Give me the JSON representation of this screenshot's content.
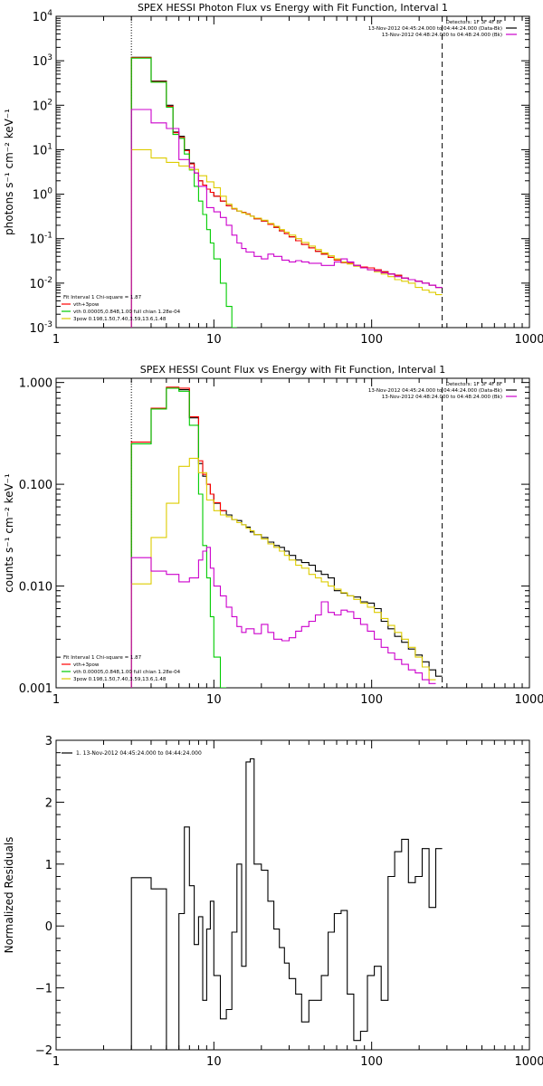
{
  "chart_data": [
    {
      "type": "line",
      "title": "SPEX HESSI Photon Flux vs Energy with Fit Function, Interval 1",
      "xlabel": "",
      "ylabel": "photons s⁻¹ cm⁻² keV⁻¹",
      "xscale": "log",
      "yscale": "log",
      "xlim": [
        1,
        1000
      ],
      "ylim": [
        0.001,
        10000
      ],
      "x_ticks": [
        1,
        10,
        100,
        1000
      ],
      "x_tick_labels": [
        "1",
        "10",
        "100",
        "1000"
      ],
      "y_ticks": [
        0.001,
        0.01,
        0.1,
        1,
        10,
        100,
        1000,
        10000
      ],
      "y_tick_labels": [
        [
          "10",
          "-3"
        ],
        [
          "10",
          "-2"
        ],
        [
          "10",
          "-1"
        ],
        [
          "10",
          "0"
        ],
        [
          "10",
          "1"
        ],
        [
          "10",
          "2"
        ],
        [
          "10",
          "3"
        ],
        [
          "10",
          "4"
        ]
      ],
      "fit_range": [
        3,
        280
      ],
      "info_right": [
        "Detectors: 1F 3F 4F 8F",
        "13-Nov-2012 04:45:24.000 to 04:44:24.000 (Data-Bk)",
        "13-Nov-2012 04:48:24.000 to 04:48:24.000 (Bk)"
      ],
      "info_left": [
        "Fit Interval 1   Chi-square = 1.87",
        "vth+3pow",
        "vth 0.00005,0.848,1.00  full chian 1.28e-04",
        "3pow 0.198,1.50,7.40,3.59,13.6,1.48"
      ],
      "legend_right_colors": [
        "#000000",
        "#cc00cc"
      ],
      "legend_left_colors": [
        "#ff0000",
        "#00cc00",
        "#ddcc00"
      ],
      "grid": false,
      "series": [
        {
          "color": "#000000",
          "edges": [
            3,
            4,
            5,
            5.5,
            6,
            6.5,
            7,
            7.5,
            8,
            8.5,
            9,
            9.5,
            10,
            11,
            12,
            13,
            14,
            15,
            16,
            17,
            18,
            20,
            22,
            24,
            26,
            28,
            30,
            33,
            36,
            40,
            44,
            48,
            53,
            58,
            64,
            70,
            77,
            85,
            94,
            104,
            115,
            127,
            140,
            155,
            171,
            189,
            209,
            231,
            255,
            280
          ],
          "values": [
            1200,
            350,
            100,
            25,
            20,
            10,
            5,
            3,
            2,
            1.6,
            1.3,
            1.1,
            0.9,
            0.7,
            0.55,
            0.47,
            0.42,
            0.39,
            0.36,
            0.32,
            0.28,
            0.25,
            0.21,
            0.18,
            0.15,
            0.13,
            0.11,
            0.09,
            0.074,
            0.062,
            0.052,
            0.045,
            0.038,
            0.033,
            0.029,
            0.028,
            0.025,
            0.023,
            0.022,
            0.02,
            0.018,
            0.016,
            0.015,
            0.013,
            0.012,
            0.011,
            0.01,
            0.009,
            0.008
          ]
        },
        {
          "color": "#ff0000",
          "edges": [
            3,
            4,
            5,
            5.5,
            6,
            6.5,
            7,
            7.5,
            8,
            8.5,
            9,
            9.5,
            10,
            11,
            12,
            13,
            14,
            15,
            16,
            17,
            18,
            20,
            22,
            24,
            26,
            28,
            30,
            33,
            36,
            40,
            44,
            48,
            53,
            58,
            64,
            70,
            77,
            85,
            94,
            104,
            115,
            127,
            140,
            155,
            171,
            189,
            209,
            231,
            255,
            280
          ],
          "values": [
            1180,
            340,
            95,
            24,
            19,
            9.5,
            4.8,
            3,
            2,
            1.6,
            1.3,
            1.1,
            0.9,
            0.7,
            0.55,
            0.47,
            0.42,
            0.39,
            0.36,
            0.32,
            0.28,
            0.25,
            0.21,
            0.18,
            0.15,
            0.13,
            0.11,
            0.09,
            0.074,
            0.062,
            0.052,
            0.045,
            0.038,
            0.033,
            0.029,
            0.028,
            0.025,
            0.023,
            0.022,
            0.02,
            0.018,
            0.016,
            0.015,
            0.013,
            0.012,
            0.011,
            0.01,
            0.009,
            0.008
          ]
        },
        {
          "color": "#00cc00",
          "edges": [
            3,
            4,
            5,
            5.5,
            6,
            6.5,
            7,
            7.5,
            8,
            8.5,
            9,
            9.5,
            10,
            11,
            12,
            13,
            14
          ],
          "values": [
            1150,
            330,
            90,
            22,
            18,
            8,
            3.5,
            1.5,
            0.7,
            0.35,
            0.16,
            0.08,
            0.035,
            0.01,
            0.003,
            0.001
          ]
        },
        {
          "color": "#ddcc00",
          "edges": [
            3,
            4,
            5,
            6,
            7,
            8,
            9,
            10,
            11,
            12,
            13,
            14,
            15,
            16,
            17,
            18,
            20,
            22,
            24,
            26,
            28,
            30,
            33,
            36,
            40,
            44,
            48,
            53,
            58,
            64,
            70,
            77,
            85,
            94,
            104,
            115,
            127,
            140,
            155,
            171,
            189,
            209,
            231,
            255,
            280
          ],
          "values": [
            10,
            6.5,
            5.2,
            4.3,
            3.6,
            2.6,
            1.9,
            1.4,
            0.9,
            0.6,
            0.48,
            0.42,
            0.38,
            0.35,
            0.32,
            0.29,
            0.26,
            0.22,
            0.19,
            0.16,
            0.14,
            0.12,
            0.1,
            0.082,
            0.068,
            0.057,
            0.048,
            0.041,
            0.035,
            0.03,
            0.027,
            0.024,
            0.022,
            0.02,
            0.018,
            0.016,
            0.014,
            0.012,
            0.011,
            0.01,
            0.008,
            0.007,
            0.0062,
            0.0055
          ]
        },
        {
          "color": "#cc00cc",
          "edges": [
            3,
            4,
            5,
            6,
            7,
            7.5,
            8,
            9,
            10,
            11,
            12,
            13,
            14,
            15,
            16,
            18,
            20,
            22,
            24,
            27,
            30,
            33,
            36,
            40,
            44,
            48,
            53,
            58,
            64,
            70,
            77,
            85,
            94,
            104,
            115,
            127,
            140,
            155,
            171,
            189,
            209,
            231,
            255,
            280
          ],
          "values": [
            80,
            40,
            30,
            6,
            4,
            3,
            1.5,
            0.5,
            0.4,
            0.3,
            0.2,
            0.12,
            0.08,
            0.06,
            0.05,
            0.04,
            0.035,
            0.045,
            0.04,
            0.033,
            0.03,
            0.032,
            0.03,
            0.028,
            0.028,
            0.025,
            0.025,
            0.03,
            0.035,
            0.03,
            0.025,
            0.022,
            0.02,
            0.019,
            0.017,
            0.016,
            0.014,
            0.013,
            0.012,
            0.011,
            0.01,
            0.009,
            0.008
          ]
        }
      ]
    },
    {
      "type": "line",
      "title": "SPEX HESSI Count Flux vs Energy with Fit Function, Interval 1",
      "xlabel": "",
      "ylabel": "counts s⁻¹ cm⁻² keV⁻¹",
      "xscale": "log",
      "yscale": "log",
      "xlim": [
        1,
        1000
      ],
      "ylim": [
        0.001,
        1.1
      ],
      "x_ticks": [
        1,
        10,
        100,
        1000
      ],
      "x_tick_labels": [
        "1",
        "10",
        "100",
        "1000"
      ],
      "y_ticks": [
        0.001,
        0.01,
        0.1,
        1
      ],
      "y_tick_labels": [
        [
          "0.001"
        ],
        [
          "0.010"
        ],
        [
          "0.100"
        ],
        [
          "1.000"
        ]
      ],
      "fit_range": [
        3,
        280
      ],
      "info_right": [
        "Detectors: 1F 3F 4F 8F",
        "13-Nov-2012 04:45:24.000 to 04:44:24.000 (Data-Bk)",
        "13-Nov-2012 04:48:24.000 to 04:48:24.000 (Bk)"
      ],
      "info_left": [
        "Fit Interval 1   Chi-square = 1.87",
        "vth+3pow",
        "vth 0.00005,0.848,1.00  full chian 1.28e-04",
        "3pow 0.198,1.50,7.40,3.59,13.6,1.48"
      ],
      "legend_right_colors": [
        "#000000",
        "#cc00cc"
      ],
      "legend_left_colors": [
        "#ff0000",
        "#00cc00",
        "#ddcc00"
      ],
      "grid": false,
      "series": [
        {
          "color": "#000000",
          "edges": [
            3,
            4,
            5,
            6,
            7,
            8,
            8.5,
            9,
            9.5,
            10,
            11,
            12,
            13,
            14,
            15,
            16,
            17,
            18,
            20,
            22,
            24,
            26,
            28,
            30,
            33,
            36,
            40,
            44,
            48,
            53,
            58,
            64,
            70,
            77,
            85,
            94,
            104,
            115,
            127,
            140,
            155,
            171,
            189,
            209,
            231,
            255,
            280
          ],
          "values": [
            0.25,
            0.55,
            0.88,
            0.85,
            0.45,
            0.16,
            0.12,
            0.1,
            0.08,
            0.065,
            0.055,
            0.05,
            0.045,
            0.044,
            0.04,
            0.038,
            0.034,
            0.032,
            0.03,
            0.027,
            0.025,
            0.024,
            0.022,
            0.02,
            0.018,
            0.017,
            0.016,
            0.014,
            0.013,
            0.012,
            0.009,
            0.0085,
            0.008,
            0.0078,
            0.007,
            0.0068,
            0.006,
            0.0045,
            0.0038,
            0.0032,
            0.0028,
            0.0024,
            0.0021,
            0.0018,
            0.0015,
            0.0013
          ]
        },
        {
          "color": "#ff0000",
          "edges": [
            3,
            4,
            5,
            6,
            7,
            8,
            8.5,
            9,
            9.5,
            10,
            11,
            12
          ],
          "values": [
            0.26,
            0.56,
            0.9,
            0.88,
            0.46,
            0.17,
            0.125,
            0.1,
            0.08,
            0.066,
            0.055
          ]
        },
        {
          "color": "#00cc00",
          "edges": [
            3,
            4,
            5,
            6,
            7,
            8,
            8.5,
            9,
            9.5,
            10,
            11,
            12
          ],
          "values": [
            0.25,
            0.55,
            0.88,
            0.82,
            0.38,
            0.08,
            0.025,
            0.012,
            0.005,
            0.002,
            0.001
          ]
        },
        {
          "color": "#ddcc00",
          "edges": [
            3,
            4,
            5,
            6,
            7,
            8,
            9,
            10,
            11,
            12,
            13,
            14,
            15,
            16,
            17,
            18,
            20,
            22,
            24,
            26,
            28,
            30,
            33,
            36,
            40,
            44,
            48,
            53,
            58,
            64,
            70,
            77,
            85,
            94,
            104,
            115,
            127,
            140,
            155,
            171,
            189,
            209,
            231,
            255
          ],
          "values": [
            0.0105,
            0.03,
            0.065,
            0.15,
            0.18,
            0.13,
            0.07,
            0.055,
            0.05,
            0.048,
            0.045,
            0.042,
            0.04,
            0.037,
            0.035,
            0.032,
            0.029,
            0.026,
            0.024,
            0.022,
            0.02,
            0.018,
            0.016,
            0.015,
            0.013,
            0.012,
            0.011,
            0.01,
            0.0093,
            0.0086,
            0.008,
            0.0074,
            0.0068,
            0.0062,
            0.0055,
            0.0048,
            0.0041,
            0.0035,
            0.003,
            0.0025,
            0.002,
            0.0016,
            0.0012
          ]
        },
        {
          "color": "#cc00cc",
          "edges": [
            3,
            4,
            5,
            6,
            7,
            8,
            8.5,
            9,
            9.5,
            10,
            11,
            12,
            13,
            14,
            15,
            16,
            18,
            20,
            22,
            24,
            27,
            30,
            33,
            36,
            40,
            44,
            48,
            53,
            58,
            64,
            70,
            77,
            85,
            94,
            104,
            115,
            127,
            140,
            155,
            171,
            189,
            209,
            231,
            255
          ],
          "values": [
            0.019,
            0.014,
            0.013,
            0.011,
            0.012,
            0.018,
            0.022,
            0.024,
            0.015,
            0.01,
            0.008,
            0.0062,
            0.005,
            0.004,
            0.0035,
            0.0038,
            0.0034,
            0.0042,
            0.0035,
            0.003,
            0.0029,
            0.0031,
            0.0036,
            0.004,
            0.0045,
            0.0052,
            0.007,
            0.0055,
            0.0052,
            0.0058,
            0.0056,
            0.0048,
            0.0042,
            0.0036,
            0.003,
            0.0025,
            0.0022,
            0.0019,
            0.0017,
            0.0015,
            0.0014,
            0.0012,
            0.0011
          ]
        }
      ]
    },
    {
      "type": "line",
      "title": "",
      "xlabel": "",
      "ylabel": "Normalized Residuals",
      "xscale": "log",
      "yscale": "linear",
      "xlim": [
        1,
        1000
      ],
      "ylim": [
        -2,
        3
      ],
      "x_ticks": [
        1,
        10,
        100,
        1000
      ],
      "x_tick_labels": [
        "1",
        "10",
        "100",
        "1000"
      ],
      "y_ticks": [
        -2,
        -1,
        0,
        1,
        2,
        3
      ],
      "y_tick_labels": [
        [
          "−2"
        ],
        [
          "−1"
        ],
        [
          "0"
        ],
        [
          "1"
        ],
        [
          "2"
        ],
        [
          "3"
        ]
      ],
      "legend_text": "1. 13-Nov-2012 04:45:24.000 to 04:44:24.000",
      "grid": false,
      "series": [
        {
          "color": "#000000",
          "edges": [
            3,
            4,
            5,
            5.5,
            6,
            6.5,
            7,
            7.5,
            8,
            8.5,
            9,
            9.5,
            10,
            11,
            12,
            13,
            14,
            15,
            16,
            17,
            18,
            20,
            22,
            24,
            26,
            28,
            30,
            33,
            36,
            40,
            44,
            48,
            53,
            58,
            64,
            70,
            77,
            85,
            94,
            104,
            115,
            127,
            140,
            155,
            171,
            189,
            209,
            231,
            255,
            280
          ],
          "values": [
            0.78,
            0.6,
            -2,
            -2,
            0.2,
            1.6,
            0.65,
            -0.3,
            0.15,
            -1.2,
            -0.05,
            0.4,
            -0.8,
            -1.5,
            -1.35,
            -0.1,
            1,
            -0.65,
            2.65,
            2.7,
            1,
            0.9,
            0.4,
            -0.05,
            -0.35,
            -0.6,
            -0.85,
            -1.1,
            -1.55,
            -1.2,
            -1.2,
            -0.8,
            -0.1,
            0.2,
            0.25,
            -1.1,
            -1.85,
            -1.7,
            -0.8,
            -0.65,
            -1.2,
            0.8,
            1.2,
            1.4,
            0.7,
            0.8,
            1.25,
            0.3,
            1.25
          ]
        }
      ]
    }
  ]
}
